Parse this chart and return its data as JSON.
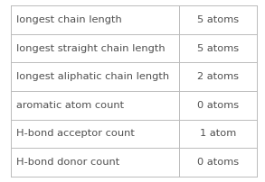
{
  "rows": [
    {
      "label": "longest chain length",
      "value": "5 atoms"
    },
    {
      "label": "longest straight chain length",
      "value": "5 atoms"
    },
    {
      "label": "longest aliphatic chain length",
      "value": "2 atoms"
    },
    {
      "label": "aromatic atom count",
      "value": "0 atoms"
    },
    {
      "label": "H-bond acceptor count",
      "value": "1 atom"
    },
    {
      "label": "H-bond donor count",
      "value": "0 atoms"
    }
  ],
  "col_split": 0.685,
  "bg_color": "#ffffff",
  "border_color": "#bbbbbb",
  "text_color_label": "#505050",
  "text_color_value": "#505050",
  "font_size": 8.2,
  "fig_width": 2.93,
  "fig_height": 2.02,
  "dpi": 100
}
